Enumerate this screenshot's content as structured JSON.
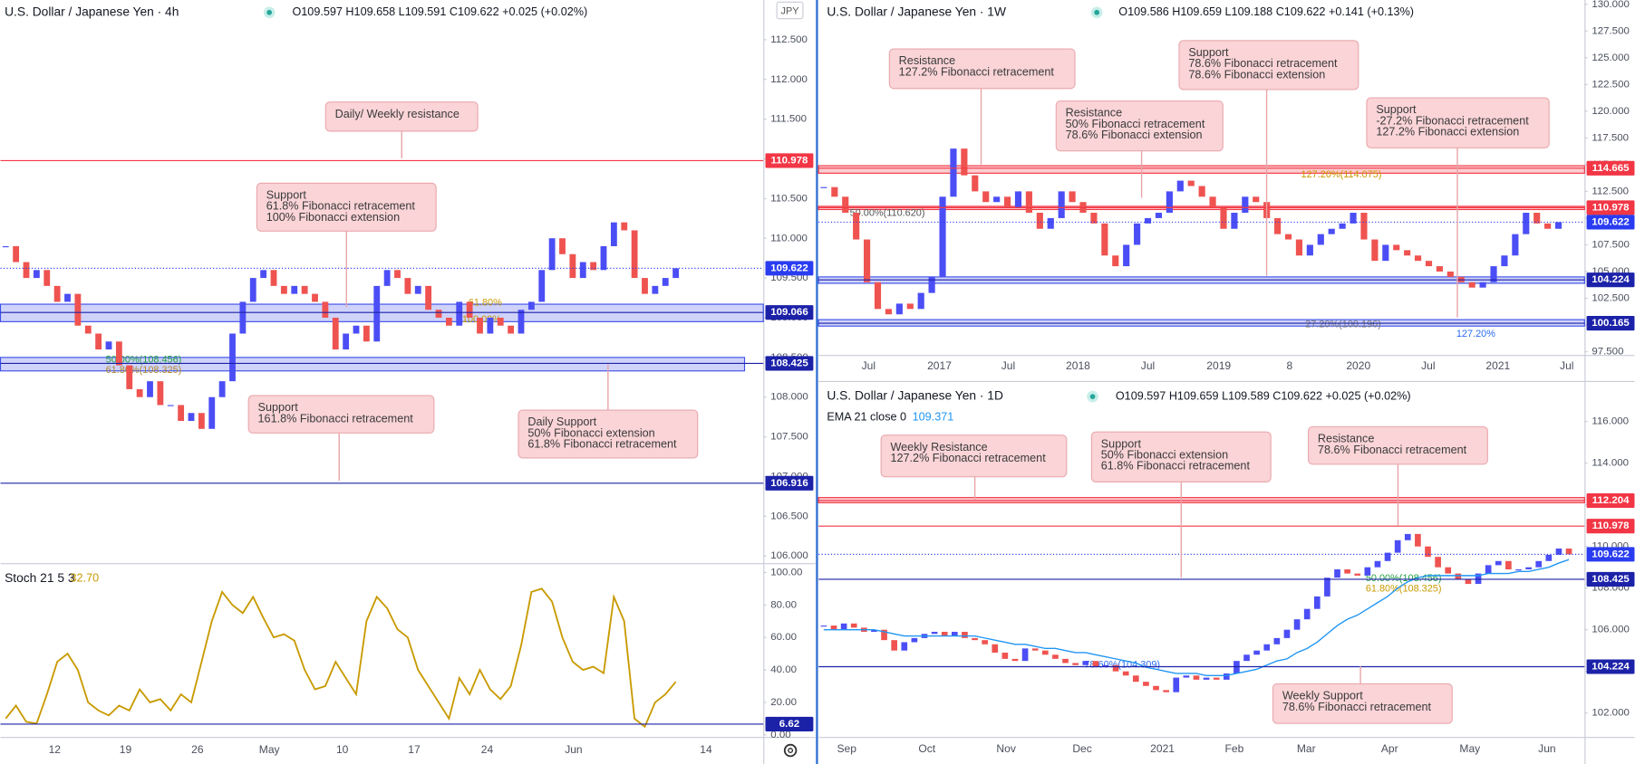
{
  "chart_data": [
    {
      "type": "candlestick",
      "title": "U.S. Dollar / Japanese Yen · 4h",
      "ohlc": "O109.597 H109.658 L109.591 C109.622 +0.025 (+0.02%)",
      "currency": "JPY",
      "xtick_labels": [
        "12",
        "19",
        "26",
        "May",
        "10",
        "17",
        "24",
        "Jun",
        "14"
      ],
      "values": [
        109.9,
        109.7,
        109.5,
        109.6,
        109.4,
        109.2,
        109.3,
        108.9,
        108.8,
        108.6,
        108.7,
        108.4,
        108.1,
        108.0,
        108.2,
        107.9,
        107.9,
        107.7,
        107.8,
        107.6,
        108.0,
        108.2,
        108.8,
        109.2,
        109.5,
        109.6,
        109.4,
        109.3,
        109.4,
        109.3,
        109.2,
        109.0,
        108.6,
        108.8,
        108.9,
        108.7,
        109.4,
        109.6,
        109.5,
        109.3,
        109.4,
        109.1,
        109.0,
        108.9,
        109.2,
        109.0,
        108.8,
        109.0,
        108.9,
        108.8,
        109.1,
        109.2,
        109.6,
        110.0,
        109.8,
        109.5,
        109.7,
        109.6,
        109.9,
        110.2,
        110.1,
        109.5,
        109.3,
        109.4,
        109.5,
        109.622
      ],
      "up_color": "#4b4ef5",
      "down_color": "#ef5350",
      "ylim": [
        105.91,
        113.0
      ],
      "yticks": [
        {
          "value": 106,
          "label": "106.000"
        },
        {
          "value": 106.5,
          "label": "106.500"
        },
        {
          "value": 107,
          "label": "107.000"
        },
        {
          "value": 107.5,
          "label": "107.500"
        },
        {
          "value": 108,
          "label": "108.000"
        },
        {
          "value": 108.5,
          "label": "108.500"
        },
        {
          "value": 109,
          "label": "109.000"
        },
        {
          "value": 109.5,
          "label": "109.500"
        },
        {
          "value": 110,
          "label": "110.000"
        },
        {
          "value": 110.5,
          "label": "110.500"
        },
        {
          "value": 111,
          "label": "111.000"
        },
        {
          "value": 111.5,
          "label": "111.500"
        },
        {
          "value": 112,
          "label": "112.000"
        },
        {
          "value": 112.5,
          "label": "112.500"
        }
      ],
      "levels": [
        {
          "value": 110.978,
          "color": "#f23645"
        },
        {
          "value": 109.622,
          "color": "#2a3cf0",
          "dashed": true
        },
        {
          "value": 109.066,
          "color": "#1c22a8"
        },
        {
          "value": 108.425,
          "color": "#1c22a8"
        },
        {
          "value": 106.916,
          "color": "#1c22a8"
        }
      ],
      "zones": [
        {
          "range": [
            108.95,
            109.17
          ],
          "color": "#3f51e8"
        },
        {
          "range": [
            108.33,
            108.5
          ],
          "color": "#3f51e8"
        }
      ],
      "fib_labels": [
        {
          "text": "61.80%",
          "color": "#c89a00"
        },
        {
          "text": "100.00%",
          "color": "#c89a00"
        },
        {
          "text": "50.00%(108.456)",
          "color": "#22a040"
        },
        {
          "text": "61.80%(108.325)",
          "color": "#b08a30"
        }
      ],
      "annotations": [
        {
          "lines": [
            "Daily/ Weekly resistance"
          ]
        },
        {
          "lines": [
            "Support",
            "61.8% Fibonacci retracement",
            "100% Fibonacci extension"
          ]
        },
        {
          "lines": [
            "Support",
            "161.8% Fibonacci retracement"
          ]
        },
        {
          "lines": [
            "Daily Support",
            "50% Fibonacci extension",
            "61.8% Fibonacci retracement"
          ]
        }
      ]
    },
    {
      "type": "line",
      "title": "Stoch 21 5 3",
      "current": {
        "value": 32.7,
        "label": "32.70"
      },
      "color": "#c89a00",
      "values": [
        10,
        18,
        8,
        7,
        25,
        45,
        50,
        40,
        20,
        15,
        12,
        18,
        15,
        28,
        20,
        22,
        15,
        25,
        20,
        45,
        70,
        88,
        80,
        75,
        85,
        72,
        60,
        62,
        58,
        40,
        28,
        30,
        45,
        35,
        25,
        70,
        85,
        78,
        65,
        60,
        40,
        30,
        20,
        10,
        35,
        25,
        40,
        28,
        22,
        30,
        55,
        88,
        90,
        82,
        60,
        45,
        40,
        42,
        38,
        85,
        70,
        10,
        5,
        20,
        25,
        32.7
      ],
      "ylim": [
        -1.3,
        104.5
      ],
      "yticks": [
        {
          "value": 0,
          "label": "0.00"
        },
        {
          "value": 20,
          "label": "20.00"
        },
        {
          "value": 40,
          "label": "40.00"
        },
        {
          "value": 60,
          "label": "60.00"
        },
        {
          "value": 80,
          "label": "80.00"
        },
        {
          "value": 100,
          "label": "100.00"
        }
      ],
      "levels": [
        {
          "value": 6.62,
          "color": "#1c22a8"
        }
      ]
    },
    {
      "type": "candlestick",
      "title": "U.S. Dollar / Japanese Yen · 1W",
      "ohlc": "O109.586 H109.659 L109.188 C109.622 +0.141 (+0.13%)",
      "xtick_labels": [
        "Jul",
        "2017",
        "Jul",
        "2018",
        "Jul",
        "2019",
        "8",
        "2020",
        "Jul",
        "2021",
        "Jul"
      ],
      "values": [
        112.9,
        112.0,
        110.5,
        108.0,
        104.0,
        101.5,
        101.0,
        102.0,
        101.5,
        103.0,
        104.5,
        112.0,
        116.5,
        114.0,
        112.5,
        111.5,
        112.0,
        111.0,
        112.5,
        110.5,
        109.0,
        110.0,
        112.5,
        111.5,
        110.5,
        109.5,
        106.5,
        105.5,
        107.5,
        109.5,
        110.0,
        110.5,
        112.5,
        113.5,
        113.0,
        112.0,
        111.0,
        109.0,
        110.5,
        112.0,
        111.5,
        110.0,
        108.5,
        108.0,
        106.5,
        107.5,
        108.5,
        109.0,
        109.5,
        110.5,
        108.0,
        106.0,
        107.5,
        107.0,
        106.5,
        106.0,
        105.5,
        105.0,
        104.5,
        104.0,
        103.5,
        104.0,
        105.5,
        106.5,
        108.5,
        110.5,
        109.5,
        109.0,
        109.622
      ],
      "up_color": "#4b4ef5",
      "down_color": "#ef5350",
      "ylim": [
        97.2,
        130.4
      ],
      "yticks": [
        {
          "value": 97.5,
          "label": "97.500"
        },
        {
          "value": 100,
          "label": "100.000"
        },
        {
          "value": 102.5,
          "label": "102.500"
        },
        {
          "value": 105,
          "label": "105.000"
        },
        {
          "value": 107.5,
          "label": "107.500"
        },
        {
          "value": 110,
          "label": "110.000"
        },
        {
          "value": 112.5,
          "label": "112.500"
        },
        {
          "value": 115,
          "label": "115.000"
        },
        {
          "value": 117.5,
          "label": "117.500"
        },
        {
          "value": 120,
          "label": "120.000"
        },
        {
          "value": 122.5,
          "label": "122.500"
        },
        {
          "value": 125,
          "label": "125.000"
        },
        {
          "value": 127.5,
          "label": "127.500"
        },
        {
          "value": 130,
          "label": "130.000"
        }
      ],
      "levels": [
        {
          "value": 114.665,
          "color": "#f23645"
        },
        {
          "value": 110.978,
          "color": "#f23645"
        },
        {
          "value": 109.622,
          "color": "#2a3cf0",
          "dashed": true
        },
        {
          "value": 104.224,
          "color": "#1c22a8"
        },
        {
          "value": 100.165,
          "color": "#1c22a8"
        }
      ],
      "zones": [
        {
          "range": [
            114.2,
            114.9
          ],
          "color": "#f23645"
        },
        {
          "range": [
            110.8,
            111.1
          ],
          "color": "#f23645"
        },
        {
          "range": [
            103.9,
            104.5
          ],
          "color": "#3f51e8"
        },
        {
          "range": [
            99.9,
            100.5
          ],
          "color": "#3f51e8"
        }
      ],
      "fib_labels": [
        {
          "text": "127.20%(114.075)",
          "color": "#c89a00"
        },
        {
          "text": "50.00%(110.620)",
          "color": "#555555"
        },
        {
          "text": "27.20%(100.196)",
          "color": "#777777"
        },
        {
          "text": "127.20%",
          "color": "#2a6cf0"
        }
      ],
      "annotations": [
        {
          "lines": [
            "Resistance",
            "127.2% Fibonacci retracement"
          ]
        },
        {
          "lines": [
            "Resistance",
            "50% Fibonacci retracement",
            "78.6% Fibonacci extension"
          ]
        },
        {
          "lines": [
            "Support",
            "78.6% Fibonacci retracement",
            "78.6% Fibonacci extension"
          ]
        },
        {
          "lines": [
            "Support",
            "-27.2% Fibonacci retracement",
            "127.2% Fibonacci extension"
          ]
        }
      ]
    },
    {
      "type": "candlestick",
      "title": "U.S. Dollar / Japanese Yen · 1D",
      "ohlc": "O109.597 H109.659 L109.589 C109.622 +0.025 (+0.02%)",
      "xtick_labels": [
        "Sep",
        "Oct",
        "Nov",
        "Dec",
        "2021",
        "Feb",
        "Mar",
        "Apr",
        "May",
        "Jun"
      ],
      "values": [
        106.2,
        106.0,
        106.3,
        106.1,
        105.9,
        106.0,
        105.5,
        105.0,
        105.4,
        105.6,
        105.8,
        105.9,
        105.7,
        105.9,
        105.6,
        105.5,
        105.3,
        104.9,
        104.6,
        104.5,
        105.1,
        105.0,
        104.8,
        104.6,
        104.4,
        104.3,
        104.5,
        104.2,
        104.3,
        104.0,
        103.8,
        103.5,
        103.3,
        103.1,
        103.0,
        103.7,
        103.8,
        103.6,
        103.7,
        103.6,
        103.9,
        104.5,
        104.8,
        105.0,
        105.3,
        105.6,
        106.0,
        106.5,
        107.0,
        107.6,
        108.5,
        108.9,
        108.7,
        108.6,
        109.0,
        109.3,
        109.7,
        110.3,
        110.6,
        110.0,
        109.5,
        109.0,
        108.7,
        108.4,
        108.2,
        108.7,
        109.1,
        109.3,
        108.9,
        108.9,
        109.0,
        109.3,
        109.6,
        109.9,
        109.622
      ],
      "ema": {
        "name": "EMA 21 close 0",
        "current": 109.371,
        "color": "#2196f3",
        "values": [
          106.0,
          106.0,
          106.0,
          106.0,
          106.0,
          106.0,
          105.9,
          105.8,
          105.7,
          105.7,
          105.7,
          105.7,
          105.7,
          105.7,
          105.7,
          105.7,
          105.6,
          105.5,
          105.4,
          105.3,
          105.3,
          105.2,
          105.1,
          105.1,
          105.0,
          104.9,
          104.9,
          104.8,
          104.7,
          104.6,
          104.5,
          104.4,
          104.2,
          104.1,
          104.0,
          103.9,
          103.9,
          103.9,
          103.8,
          103.8,
          103.8,
          103.9,
          104.0,
          104.1,
          104.3,
          104.5,
          104.6,
          104.9,
          105.1,
          105.4,
          105.8,
          106.2,
          106.5,
          106.7,
          107.0,
          107.3,
          107.6,
          108.0,
          108.3,
          108.5,
          108.6,
          108.6,
          108.6,
          108.6,
          108.6,
          108.6,
          108.7,
          108.7,
          108.7,
          108.8,
          108.8,
          108.9,
          109.0,
          109.2,
          109.371
        ]
      },
      "up_color": "#4b4ef5",
      "down_color": "#ef5350",
      "ylim": [
        100.85,
        117.85
      ],
      "yticks": [
        {
          "value": 102,
          "label": "102.000"
        },
        {
          "value": 104,
          "label": "104.000"
        },
        {
          "value": 106,
          "label": "106.000"
        },
        {
          "value": 108,
          "label": "108.000"
        },
        {
          "value": 110,
          "label": "110.000"
        },
        {
          "value": 112,
          "label": "112.000"
        },
        {
          "value": 114,
          "label": "114.000"
        },
        {
          "value": 116,
          "label": "116.000"
        }
      ],
      "levels": [
        {
          "value": 112.204,
          "color": "#f23645"
        },
        {
          "value": 110.978,
          "color": "#f23645"
        },
        {
          "value": 109.622,
          "color": "#2a3cf0",
          "dashed": true
        },
        {
          "value": 108.425,
          "color": "#1c22a8"
        },
        {
          "value": 104.224,
          "color": "#1c22a8"
        }
      ],
      "zones": [
        {
          "range": [
            112.1,
            112.35
          ],
          "color": "#f23645"
        }
      ],
      "fib_labels": [
        {
          "text": "50.00%(108.456)",
          "color": "#22a040"
        },
        {
          "text": "61.80%(108.325)",
          "color": "#c89a00"
        },
        {
          "text": "78.60%(104.309)",
          "color": "#2a6cf0"
        }
      ],
      "annotations": [
        {
          "lines": [
            "Weekly Resistance",
            "127.2% Fibonacci retracement"
          ]
        },
        {
          "lines": [
            "Support",
            "50% Fibonacci extension",
            "61.8% Fibonacci retracement"
          ]
        },
        {
          "lines": [
            "Resistance",
            "78.6% Fibonacci retracement"
          ]
        },
        {
          "lines": [
            "Weekly Support",
            "78.6% Fibonacci retracement"
          ]
        }
      ]
    }
  ]
}
